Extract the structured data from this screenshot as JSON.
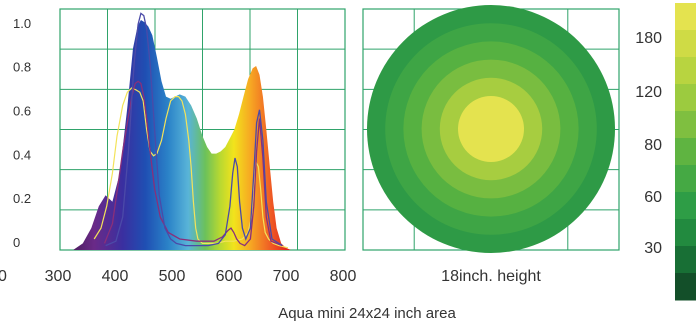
{
  "footer": {
    "caption": "Aqua mini 24x24 inch area"
  },
  "colors": {
    "grid": "#2fa36a",
    "ring_outer": "#2e9a46",
    "ring_inner": "#e4e34f",
    "curve_blue": "#4b4aa8",
    "curve_purple": "#8a2f7a",
    "curve_yellow": "#f3e35a"
  },
  "chart_data": [
    {
      "type": "area",
      "xlim": [
        300,
        800
      ],
      "ylim": [
        0,
        1.1
      ],
      "x_ticks": [
        300,
        400,
        500,
        600,
        700,
        800
      ],
      "y_ticks": [
        0,
        0.2,
        0.4,
        0.6,
        0.8,
        1.0
      ],
      "y_tick_labels": [
        "0",
        "0.2",
        "0.4",
        "0.6",
        "0.8",
        "1.0"
      ],
      "x_tick_labels": [
        "300",
        "400",
        "500",
        "600",
        "700",
        "800"
      ],
      "grid": true,
      "series": [
        {
          "style": "filled-spectrum",
          "x": [
            323,
            340,
            355,
            368,
            380,
            392,
            405,
            418,
            428,
            436,
            442,
            448,
            455,
            462,
            470,
            478,
            486,
            494,
            502,
            510,
            520,
            530,
            540,
            550,
            558,
            566,
            574,
            582,
            590,
            598,
            606,
            614,
            622,
            630,
            638,
            644,
            650,
            656,
            662,
            668,
            674,
            680,
            688,
            696,
            705
          ],
          "y": [
            0,
            0.03,
            0.1,
            0.2,
            0.25,
            0.22,
            0.35,
            0.65,
            0.92,
            1.02,
            1.05,
            1.04,
            1.02,
            0.98,
            0.88,
            0.77,
            0.7,
            0.69,
            0.7,
            0.71,
            0.7,
            0.66,
            0.6,
            0.52,
            0.47,
            0.44,
            0.44,
            0.45,
            0.47,
            0.51,
            0.55,
            0.62,
            0.7,
            0.78,
            0.83,
            0.84,
            0.8,
            0.7,
            0.55,
            0.38,
            0.22,
            0.1,
            0.03,
            0.01,
            0
          ]
        },
        {
          "style": "line-blue",
          "x": [
            380,
            398,
            410,
            420,
            430,
            437,
            442,
            447,
            452,
            458,
            466,
            474,
            484,
            494,
            504,
            520,
            540,
            560,
            578,
            590,
            598,
            603,
            607,
            611,
            615,
            620,
            626,
            634,
            640,
            645,
            650,
            656,
            662,
            672,
            690
          ],
          "y": [
            0.02,
            0.04,
            0.15,
            0.45,
            0.85,
            1.03,
            1.08,
            1.07,
            1.01,
            0.85,
            0.55,
            0.25,
            0.1,
            0.05,
            0.03,
            0.02,
            0.02,
            0.02,
            0.03,
            0.07,
            0.2,
            0.35,
            0.42,
            0.38,
            0.22,
            0.1,
            0.05,
            0.1,
            0.35,
            0.58,
            0.64,
            0.5,
            0.22,
            0.05,
            0.02
          ]
        },
        {
          "style": "line-purple",
          "x": [
            378,
            392,
            402,
            410,
            418,
            426,
            432,
            437,
            442,
            447,
            452,
            458,
            466,
            476,
            490,
            510,
            540,
            570,
            585,
            595,
            600,
            605,
            610,
            616,
            624,
            634,
            640,
            645,
            650,
            656,
            662,
            670,
            690
          ],
          "y": [
            0.03,
            0.12,
            0.3,
            0.45,
            0.58,
            0.7,
            0.76,
            0.77,
            0.76,
            0.7,
            0.6,
            0.45,
            0.28,
            0.15,
            0.08,
            0.05,
            0.04,
            0.04,
            0.06,
            0.09,
            0.1,
            0.08,
            0.05,
            0.03,
            0.02,
            0.05,
            0.2,
            0.45,
            0.6,
            0.42,
            0.15,
            0.04,
            0.02
          ]
        },
        {
          "style": "line-yellow",
          "x": [
            360,
            372,
            382,
            392,
            400,
            410,
            418,
            426,
            434,
            440,
            446,
            452,
            458,
            464,
            470,
            478,
            486,
            494,
            502,
            508,
            514,
            520,
            526,
            530,
            534,
            538,
            542,
            550,
            560,
            575,
            590,
            605,
            620,
            630,
            636,
            640,
            644,
            648,
            652,
            656,
            660,
            666,
            674,
            684,
            700
          ],
          "y": [
            0.05,
            0.1,
            0.2,
            0.35,
            0.52,
            0.66,
            0.72,
            0.74,
            0.73,
            0.72,
            0.68,
            0.55,
            0.45,
            0.43,
            0.44,
            0.5,
            0.6,
            0.68,
            0.7,
            0.7,
            0.68,
            0.62,
            0.5,
            0.38,
            0.22,
            0.1,
            0.05,
            0.03,
            0.03,
            0.03,
            0.04,
            0.04,
            0.05,
            0.08,
            0.15,
            0.3,
            0.4,
            0.38,
            0.28,
            0.15,
            0.08,
            0.05,
            0.03,
            0.02,
            0.01
          ]
        }
      ]
    },
    {
      "type": "heatmap",
      "xlabel": "18inch. height",
      "rings": [
        {
          "color": "#2e9a46"
        },
        {
          "color": "#3ea545"
        },
        {
          "color": "#56b141"
        },
        {
          "color": "#79bd40"
        },
        {
          "color": "#a7cd40"
        },
        {
          "color": "#e4e34f"
        }
      ]
    },
    {
      "type": "table",
      "legend_labels": [
        "180",
        "120",
        "80",
        "60",
        "30"
      ],
      "swatches": [
        "#e4e34f",
        "#cfdb45",
        "#b8d440",
        "#9ccb3f",
        "#7fbf40",
        "#5fb441",
        "#45a944",
        "#2e9d46",
        "#228a3f",
        "#186f35",
        "#134f29"
      ]
    }
  ]
}
